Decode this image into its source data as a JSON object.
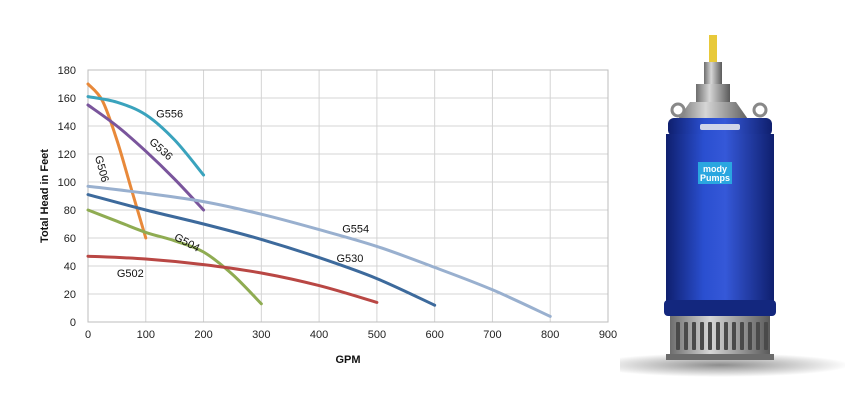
{
  "chart_data": {
    "type": "line",
    "title": "",
    "xlabel": "GPM",
    "ylabel": "Total Head in Feet",
    "xlim": [
      0,
      900
    ],
    "ylim": [
      0,
      180
    ],
    "x_ticks": [
      0,
      100,
      200,
      300,
      400,
      500,
      600,
      700,
      800,
      900
    ],
    "y_ticks": [
      0,
      20,
      40,
      60,
      80,
      100,
      120,
      140,
      160,
      180
    ],
    "grid": true,
    "series": [
      {
        "name": "G506",
        "color": "#e8893a",
        "points": [
          [
            0,
            170
          ],
          [
            25,
            158
          ],
          [
            50,
            130
          ],
          [
            75,
            95
          ],
          [
            100,
            60
          ]
        ]
      },
      {
        "name": "G556",
        "color": "#3aa3bd",
        "points": [
          [
            0,
            161
          ],
          [
            50,
            157
          ],
          [
            100,
            148
          ],
          [
            150,
            130
          ],
          [
            200,
            105
          ]
        ]
      },
      {
        "name": "G536",
        "color": "#7a559c",
        "points": [
          [
            0,
            155
          ],
          [
            50,
            140
          ],
          [
            100,
            122
          ],
          [
            150,
            102
          ],
          [
            200,
            80
          ]
        ]
      },
      {
        "name": "G504",
        "color": "#8fac52",
        "points": [
          [
            0,
            80
          ],
          [
            50,
            72
          ],
          [
            100,
            64
          ],
          [
            150,
            58
          ],
          [
            200,
            50
          ],
          [
            250,
            34
          ],
          [
            300,
            13
          ]
        ]
      },
      {
        "name": "G502",
        "color": "#b94744",
        "points": [
          [
            0,
            47
          ],
          [
            100,
            45
          ],
          [
            200,
            41
          ],
          [
            300,
            35
          ],
          [
            400,
            26
          ],
          [
            500,
            14
          ]
        ]
      },
      {
        "name": "G530",
        "color": "#3d6a9c",
        "points": [
          [
            0,
            91
          ],
          [
            100,
            80
          ],
          [
            200,
            70
          ],
          [
            300,
            59
          ],
          [
            400,
            46
          ],
          [
            500,
            31
          ],
          [
            600,
            12
          ]
        ]
      },
      {
        "name": "G554",
        "color": "#99b0cf",
        "points": [
          [
            0,
            97
          ],
          [
            100,
            92
          ],
          [
            200,
            86
          ],
          [
            300,
            77
          ],
          [
            400,
            66
          ],
          [
            500,
            54
          ],
          [
            600,
            39
          ],
          [
            700,
            23
          ],
          [
            800,
            4
          ]
        ]
      }
    ],
    "annotations": [
      {
        "text": "G506",
        "x": 12,
        "y": 118,
        "rotate": 75
      },
      {
        "text": "G556",
        "x": 118,
        "y": 146,
        "rotate": 0
      },
      {
        "text": "G536",
        "x": 105,
        "y": 128,
        "rotate": 42
      },
      {
        "text": "G504",
        "x": 148,
        "y": 59,
        "rotate": 28
      },
      {
        "text": "G502",
        "x": 50,
        "y": 32,
        "rotate": 0
      },
      {
        "text": "G530",
        "x": 430,
        "y": 43,
        "rotate": 0
      },
      {
        "text": "G554",
        "x": 440,
        "y": 64,
        "rotate": 0
      }
    ]
  },
  "product": {
    "logo_line1": "mody",
    "logo_line2": "Pumps",
    "body_color": "#1f3fb8",
    "body_dark": "#0f1f6e",
    "accent_color": "#e8c93a"
  }
}
